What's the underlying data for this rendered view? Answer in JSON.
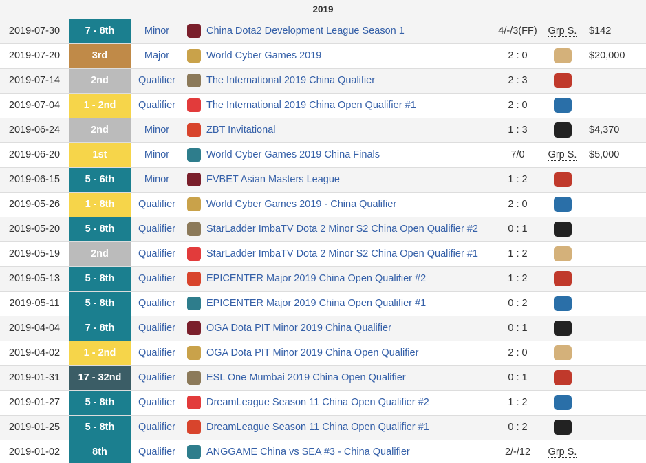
{
  "table": {
    "header": "2019",
    "rows": [
      {
        "date": "2019-07-30",
        "placement": "7 - 8th",
        "placement_color": "#1b7f8f",
        "tier": "Minor",
        "tournament": "China Dota2 Development League Season 1",
        "score": "4/-/3(FF)",
        "opponent": "Grp S.",
        "prize": "$142"
      },
      {
        "date": "2019-07-20",
        "placement": "3rd",
        "placement_color": "#c08a48",
        "tier": "Major",
        "tournament": "World Cyber Games 2019",
        "score": "2 : 0",
        "prize": "$20,000"
      },
      {
        "date": "2019-07-14",
        "placement": "2nd",
        "placement_color": "#bbbbbb",
        "tier": "Qualifier",
        "tournament": "The International 2019 China Qualifier",
        "score": "2 : 3"
      },
      {
        "date": "2019-07-04",
        "placement": "1 - 2nd",
        "placement_color": "#f6d54a",
        "tier": "Qualifier",
        "tournament": "The International 2019 China Open Qualifier #1",
        "score": "2 : 0"
      },
      {
        "date": "2019-06-24",
        "placement": "2nd",
        "placement_color": "#bbbbbb",
        "tier": "Minor",
        "tournament": "ZBT Invitational",
        "score": "1 : 3",
        "prize": "$4,370"
      },
      {
        "date": "2019-06-20",
        "placement": "1st",
        "placement_color": "#f6d54a",
        "tier": "Minor",
        "tournament": "World Cyber Games 2019 China Finals",
        "score": "7/0",
        "opponent": "Grp S.",
        "prize": "$5,000"
      },
      {
        "date": "2019-06-15",
        "placement": "5 - 6th",
        "placement_color": "#1b7f8f",
        "tier": "Minor",
        "tournament": "FVBET Asian Masters League",
        "score": "1 : 2"
      },
      {
        "date": "2019-05-26",
        "placement": "1 - 8th",
        "placement_color": "#f6d54a",
        "tier": "Qualifier",
        "tournament": "World Cyber Games 2019 - China Qualifier",
        "score": "2 : 0"
      },
      {
        "date": "2019-05-20",
        "placement": "5 - 8th",
        "placement_color": "#1b7f8f",
        "tier": "Qualifier",
        "tournament": "StarLadder ImbaTV Dota 2 Minor S2 China Open Qualifier #2",
        "score": "0 : 1"
      },
      {
        "date": "2019-05-19",
        "placement": "2nd",
        "placement_color": "#bbbbbb",
        "tier": "Qualifier",
        "tournament": "StarLadder ImbaTV Dota 2 Minor S2 China Open Qualifier #1",
        "score": "1 : 2"
      },
      {
        "date": "2019-05-13",
        "placement": "5 - 8th",
        "placement_color": "#1b7f8f",
        "tier": "Qualifier",
        "tournament": "EPICENTER Major 2019 China Open Qualifier #2",
        "score": "1 : 2"
      },
      {
        "date": "2019-05-11",
        "placement": "5 - 8th",
        "placement_color": "#1b7f8f",
        "tier": "Qualifier",
        "tournament": "EPICENTER Major 2019 China Open Qualifier #1",
        "score": "0 : 2"
      },
      {
        "date": "2019-04-04",
        "placement": "7 - 8th",
        "placement_color": "#1b7f8f",
        "tier": "Qualifier",
        "tournament": "OGA Dota PIT Minor 2019 China Qualifier",
        "score": "0 : 1"
      },
      {
        "date": "2019-04-02",
        "placement": "1 - 2nd",
        "placement_color": "#f6d54a",
        "tier": "Qualifier",
        "tournament": "OGA Dota PIT Minor 2019 China Open Qualifier",
        "score": "2 : 0"
      },
      {
        "date": "2019-01-31",
        "placement": "17 - 32nd",
        "placement_color": "#3b5d66",
        "tier": "Qualifier",
        "tournament": "ESL One Mumbai 2019 China Open Qualifier",
        "score": "0 : 1"
      },
      {
        "date": "2019-01-27",
        "placement": "5 - 8th",
        "placement_color": "#1b7f8f",
        "tier": "Qualifier",
        "tournament": "DreamLeague Season 11 China Open Qualifier #2",
        "score": "1 : 2"
      },
      {
        "date": "2019-01-25",
        "placement": "5 - 8th",
        "placement_color": "#1b7f8f",
        "tier": "Qualifier",
        "tournament": "DreamLeague Season 11 China Open Qualifier #1",
        "score": "0 : 2"
      },
      {
        "date": "2019-01-02",
        "placement": "8th",
        "placement_color": "#1b7f8f",
        "tier": "Qualifier",
        "tournament": "ANGGAME China vs SEA #3 - China Qualifier",
        "score": "2/-/12",
        "opponent": "Grp S."
      }
    ]
  }
}
